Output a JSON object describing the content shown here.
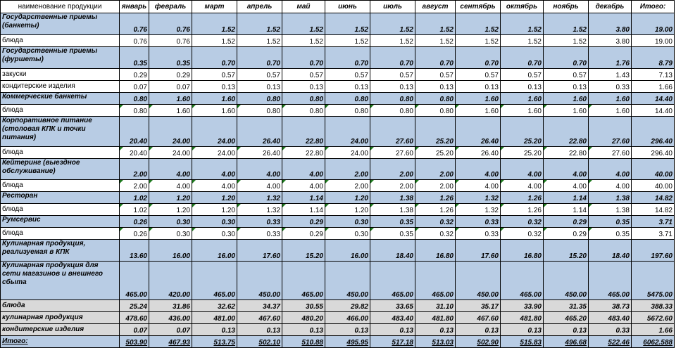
{
  "header": {
    "name": "наименование продукции",
    "months": [
      "январь",
      "февраль",
      "март",
      "апрель",
      "май",
      "июнь",
      "июль",
      "август",
      "сентябрь",
      "октябрь",
      "ноябрь",
      "декабрь"
    ],
    "total": "Итого:"
  },
  "rows": [
    {
      "name": "Государственные приемы (банкеты)",
      "type": "cat",
      "values": [
        "0.76",
        "0.76",
        "1.52",
        "1.52",
        "1.52",
        "1.52",
        "1.52",
        "1.52",
        "1.52",
        "1.52",
        "1.52",
        "3.80",
        "19.00"
      ]
    },
    {
      "name": "блюда",
      "type": "sub",
      "values": [
        "0.76",
        "0.76",
        "1.52",
        "1.52",
        "1.52",
        "1.52",
        "1.52",
        "1.52",
        "1.52",
        "1.52",
        "1.52",
        "3.80",
        "19.00"
      ]
    },
    {
      "name": "Государственные приемы (фуршеты)",
      "type": "cat",
      "values": [
        "0.35",
        "0.35",
        "0.70",
        "0.70",
        "0.70",
        "0.70",
        "0.70",
        "0.70",
        "0.70",
        "0.70",
        "0.70",
        "1.76",
        "8.79"
      ]
    },
    {
      "name": "закуски",
      "type": "sub",
      "values": [
        "0.29",
        "0.29",
        "0.57",
        "0.57",
        "0.57",
        "0.57",
        "0.57",
        "0.57",
        "0.57",
        "0.57",
        "0.57",
        "1.43",
        "7.13"
      ]
    },
    {
      "name": "кондитерские изделия",
      "type": "sub",
      "values": [
        "0.07",
        "0.07",
        "0.13",
        "0.13",
        "0.13",
        "0.13",
        "0.13",
        "0.13",
        "0.13",
        "0.13",
        "0.13",
        "0.33",
        "1.66"
      ]
    },
    {
      "name": "Коммерческие банкеты",
      "type": "cat",
      "values": [
        "0.80",
        "1.60",
        "1.60",
        "0.80",
        "0.80",
        "0.80",
        "0.80",
        "0.80",
        "1.60",
        "1.60",
        "1.60",
        "1.60",
        "14.40"
      ]
    },
    {
      "name": "блюда",
      "type": "sub",
      "flag": true,
      "values": [
        "0.80",
        "1.60",
        "1.60",
        "0.80",
        "0.80",
        "0.80",
        "0.80",
        "0.80",
        "1.60",
        "1.60",
        "1.60",
        "1.60",
        "14.40"
      ]
    },
    {
      "name": "Корпоративное питание (столовая КПК и точки питания)",
      "type": "cat",
      "values": [
        "20.40",
        "24.00",
        "24.00",
        "26.40",
        "22.80",
        "24.00",
        "27.60",
        "25.20",
        "26.40",
        "25.20",
        "22.80",
        "27.60",
        "296.40"
      ]
    },
    {
      "name": "блюда",
      "type": "sub",
      "flag": true,
      "values": [
        "20.40",
        "24.00",
        "24.00",
        "26.40",
        "22.80",
        "24.00",
        "27.60",
        "25.20",
        "26.40",
        "25.20",
        "22.80",
        "27.60",
        "296.40"
      ]
    },
    {
      "name": "Кейтеринг (выездное обслуживание)",
      "type": "cat",
      "values": [
        "2.00",
        "4.00",
        "4.00",
        "4.00",
        "4.00",
        "2.00",
        "2.00",
        "2.00",
        "4.00",
        "4.00",
        "4.00",
        "4.00",
        "40.00"
      ]
    },
    {
      "name": "блюда",
      "type": "sub",
      "flag": true,
      "values": [
        "2.00",
        "4.00",
        "4.00",
        "4.00",
        "4.00",
        "2.00",
        "2.00",
        "2.00",
        "4.00",
        "4.00",
        "4.00",
        "4.00",
        "40.00"
      ]
    },
    {
      "name": "Ресторан",
      "type": "cat",
      "values": [
        "1.02",
        "1.20",
        "1.20",
        "1.32",
        "1.14",
        "1.20",
        "1.38",
        "1.26",
        "1.32",
        "1.26",
        "1.14",
        "1.38",
        "14.82"
      ]
    },
    {
      "name": "блюда",
      "type": "sub",
      "flag": true,
      "values": [
        "1.02",
        "1.20",
        "1.20",
        "1.32",
        "1.14",
        "1.20",
        "1.38",
        "1.26",
        "1.32",
        "1.26",
        "1.14",
        "1.38",
        "14.82"
      ]
    },
    {
      "name": "Румсервис",
      "type": "cat",
      "values": [
        "0.26",
        "0.30",
        "0.30",
        "0.33",
        "0.29",
        "0.30",
        "0.35",
        "0.32",
        "0.33",
        "0.32",
        "0.29",
        "0.35",
        "3.71"
      ]
    },
    {
      "name": "блюда",
      "type": "sub",
      "flag": true,
      "values": [
        "0.26",
        "0.30",
        "0.30",
        "0.33",
        "0.29",
        "0.30",
        "0.35",
        "0.32",
        "0.33",
        "0.32",
        "0.29",
        "0.35",
        "3.71"
      ]
    },
    {
      "name": "Кулинарная продукция, реализуемая в КПК",
      "type": "cat",
      "values": [
        "13.60",
        "16.00",
        "16.00",
        "17.60",
        "15.20",
        "16.00",
        "18.40",
        "16.80",
        "17.60",
        "16.80",
        "15.20",
        "18.40",
        "197.60"
      ]
    },
    {
      "name": "Кулинарная продукция для сети магазинов и внешнего сбыта",
      "type": "cat",
      "values": [
        "465.00",
        "420.00",
        "465.00",
        "450.00",
        "465.00",
        "450.00",
        "465.00",
        "465.00",
        "450.00",
        "465.00",
        "450.00",
        "465.00",
        "5475.00"
      ]
    },
    {
      "name": "блюда",
      "type": "tot",
      "values": [
        "25.24",
        "31.86",
        "32.62",
        "34.37",
        "30.55",
        "29.82",
        "33.65",
        "31.10",
        "35.17",
        "33.90",
        "31.35",
        "38.73",
        "388.33"
      ]
    },
    {
      "name": "кулинарная продукция",
      "type": "tot",
      "values": [
        "478.60",
        "436.00",
        "481.00",
        "467.60",
        "480.20",
        "466.00",
        "483.40",
        "481.80",
        "467.60",
        "481.80",
        "465.20",
        "483.40",
        "5672.60"
      ]
    },
    {
      "name": "кондитерские изделия",
      "type": "tot",
      "values": [
        "0.07",
        "0.07",
        "0.13",
        "0.13",
        "0.13",
        "0.13",
        "0.13",
        "0.13",
        "0.13",
        "0.13",
        "0.13",
        "0.33",
        "1.66"
      ]
    },
    {
      "name": "Итого:",
      "type": "grand",
      "values": [
        "503.90",
        "467.93",
        "513.75",
        "502.10",
        "510.88",
        "495.95",
        "517.18",
        "513.03",
        "502.90",
        "515.83",
        "496.68",
        "522.46",
        "6062.588"
      ]
    }
  ]
}
